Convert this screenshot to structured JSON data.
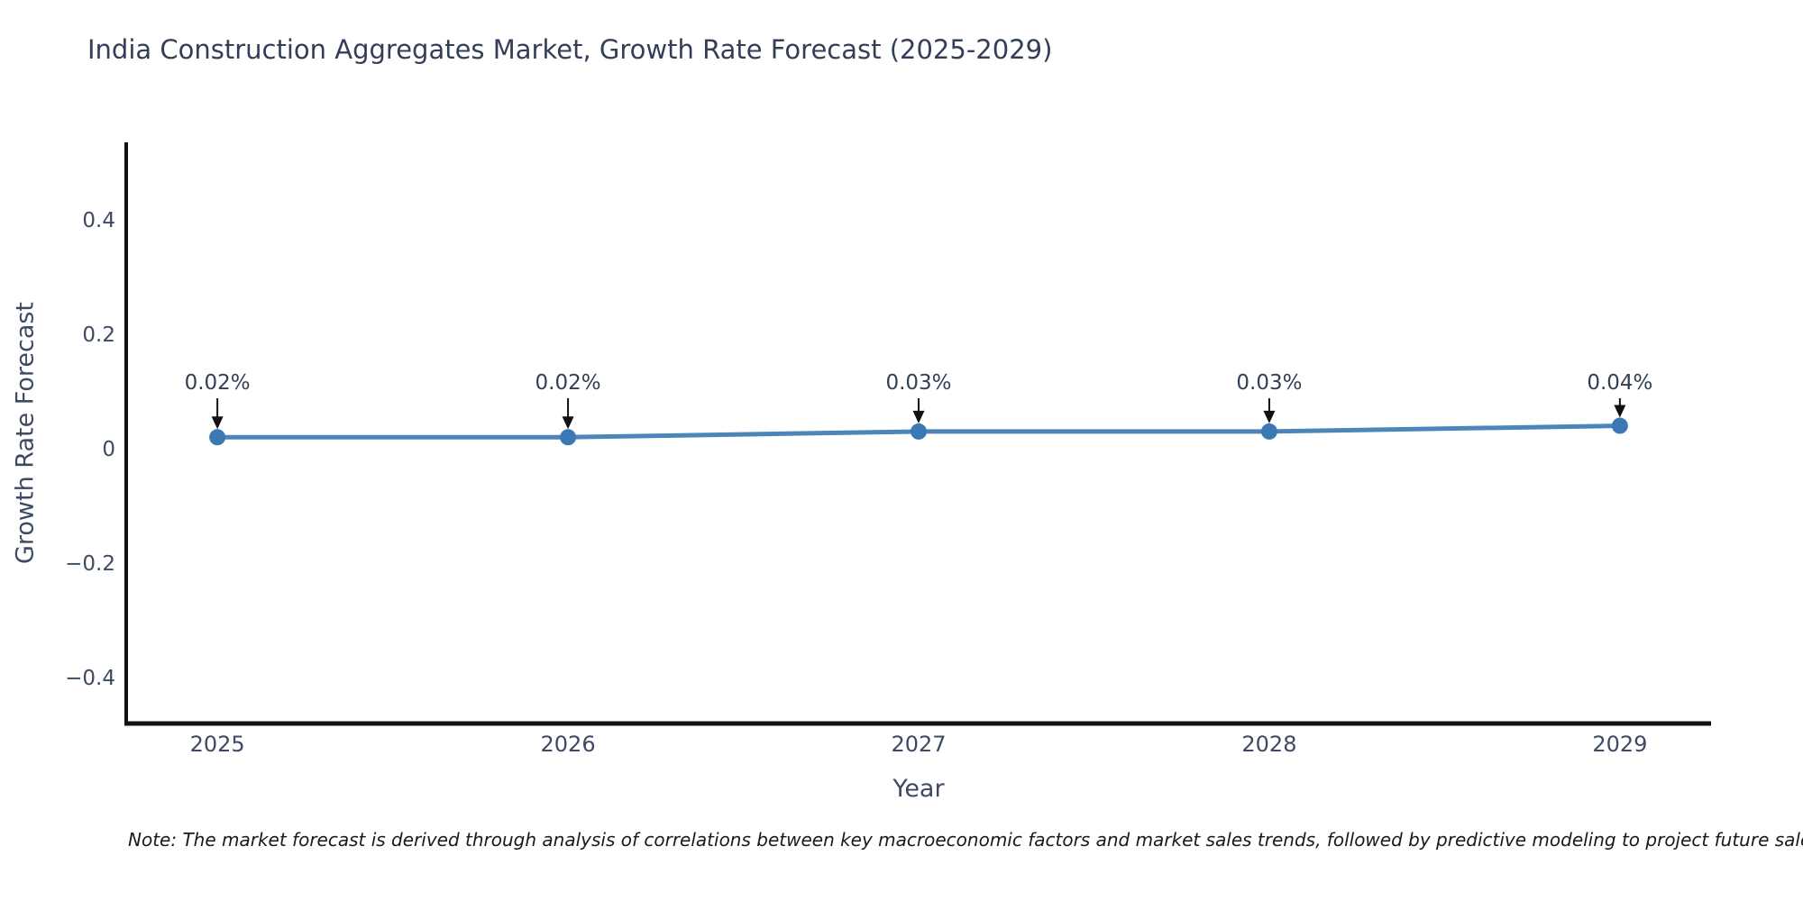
{
  "chart_data": {
    "type": "line",
    "title": "India Construction Aggregates Market, Growth Rate Forecast (2025-2029)",
    "xlabel": "Year",
    "ylabel": "Growth Rate Forecast",
    "x": [
      2025,
      2026,
      2027,
      2028,
      2029
    ],
    "series": [
      {
        "name": "Growth Rate Forecast",
        "values": [
          0.02,
          0.02,
          0.03,
          0.03,
          0.04
        ],
        "point_labels": [
          "0.02%",
          "0.02%",
          "0.03%",
          "0.03%",
          "0.04%"
        ]
      }
    ],
    "x_tick_labels": [
      "2025",
      "2026",
      "2027",
      "2028",
      "2029"
    ],
    "y_ticks": [
      0.4,
      0.2,
      0,
      -0.2,
      -0.4
    ],
    "y_tick_labels": [
      "0.4",
      "0.2",
      "0",
      "−0.2",
      "−0.4"
    ],
    "x_range": [
      2024.74,
      2029.26
    ],
    "y_range": [
      -0.48,
      0.535
    ],
    "grid": false,
    "legend": "none",
    "annotation_arrows": true,
    "colors": {
      "line": "#4c86b8",
      "marker": "#3b79b5",
      "axis": "#111111",
      "tick_text": "#3d4a63",
      "annotation_text": "#333f52"
    }
  },
  "note": {
    "text": "Note: The market forecast is derived through analysis of correlations between key macroeconomic factors and market sales trends, followed by predictive modeling to project future sales."
  }
}
